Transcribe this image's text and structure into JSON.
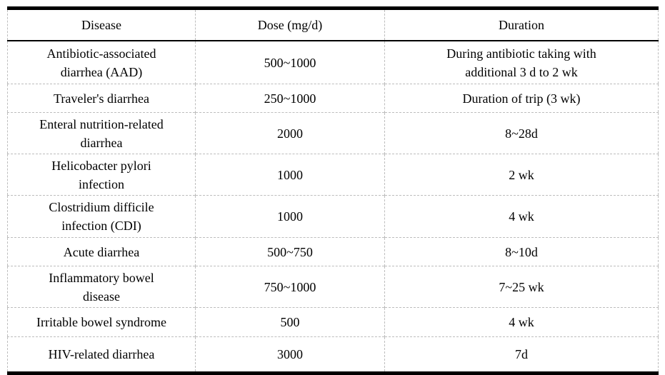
{
  "table": {
    "headers": {
      "disease": "Disease",
      "dose": "Dose (mg/d)",
      "duration": "Duration"
    },
    "rows": [
      {
        "disease": "Antibiotic-associated\ndiarrhea (AAD)",
        "dose": "500~1000",
        "duration": "During antibiotic taking with\nadditional 3 d to 2 wk"
      },
      {
        "disease": "Traveler's diarrhea",
        "dose": "250~1000",
        "duration": "Duration of trip (3 wk)"
      },
      {
        "disease": "Enteral nutrition-related\ndiarrhea",
        "dose": "2000",
        "duration": "8~28d"
      },
      {
        "disease": "Helicobacter pylori\ninfection",
        "dose": "1000",
        "duration": "2 wk"
      },
      {
        "disease": "Clostridium difficile\ninfection (CDI)",
        "dose": "1000",
        "duration": "4 wk"
      },
      {
        "disease": "Acute diarrhea",
        "dose": "500~750",
        "duration": "8~10d"
      },
      {
        "disease": "Inflammatory bowel\ndisease",
        "dose": "750~1000",
        "duration": "7~25 wk"
      },
      {
        "disease": "Irritable bowel syndrome",
        "dose": "500",
        "duration": "4 wk"
      },
      {
        "disease": "HIV-related diarrhea",
        "dose": "3000",
        "duration": "7d"
      }
    ]
  },
  "colors": {
    "heavy_border": "#000000",
    "light_border": "#bdbdbd",
    "text": "#000000",
    "background": "#ffffff"
  }
}
